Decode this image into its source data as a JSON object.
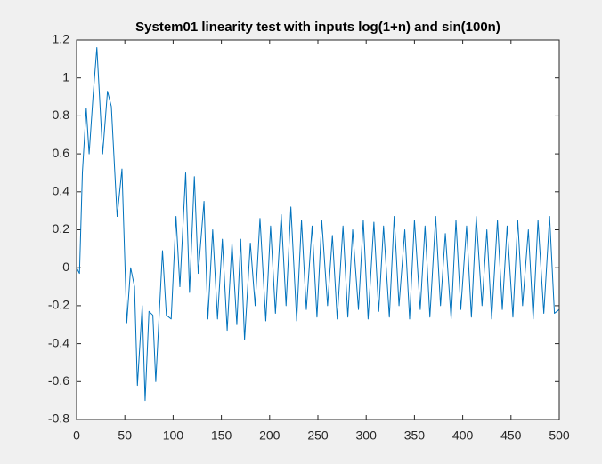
{
  "chart_data": {
    "type": "line",
    "title": "System01 linearity test with inputs log(1+n) and sin(100n)",
    "x": [
      0,
      3,
      6,
      10,
      13,
      17,
      21,
      27,
      32,
      36,
      42,
      47,
      52,
      56,
      60,
      63,
      68,
      71,
      75,
      79,
      82,
      89,
      93,
      98,
      103,
      107,
      113,
      117,
      122,
      126,
      132,
      136,
      141,
      146,
      151,
      156,
      161,
      166,
      170,
      174,
      180,
      185,
      190,
      196,
      201,
      206,
      212,
      217,
      222,
      228,
      233,
      238,
      244,
      249,
      254,
      260,
      265,
      270,
      276,
      281,
      286,
      292,
      297,
      302,
      308,
      313,
      318,
      324,
      329,
      334,
      340,
      345,
      350,
      356,
      361,
      366,
      372,
      377,
      382,
      388,
      393,
      398,
      404,
      409,
      414,
      420,
      425,
      430,
      436,
      441,
      446,
      452,
      457,
      462,
      468,
      473,
      478,
      484,
      490,
      495,
      500
    ],
    "series": [
      {
        "color": "#0072bd",
        "values": [
          0,
          -0.03,
          0.5,
          0.84,
          0.6,
          0.9,
          1.16,
          0.6,
          0.93,
          0.85,
          0.27,
          0.52,
          -0.29,
          0.0,
          -0.1,
          -0.62,
          -0.2,
          -0.7,
          -0.23,
          -0.25,
          -0.6,
          0.09,
          -0.25,
          -0.27,
          0.27,
          -0.1,
          0.5,
          -0.13,
          0.48,
          -0.03,
          0.35,
          -0.27,
          0.2,
          -0.27,
          0.15,
          -0.33,
          0.13,
          -0.3,
          0.15,
          -0.38,
          0.13,
          -0.2,
          0.26,
          -0.28,
          0.22,
          -0.24,
          0.28,
          -0.2,
          0.32,
          -0.28,
          0.25,
          -0.22,
          0.22,
          -0.26,
          0.25,
          -0.2,
          0.17,
          -0.27,
          0.22,
          -0.26,
          0.2,
          -0.22,
          0.25,
          -0.27,
          0.24,
          -0.23,
          0.22,
          -0.26,
          0.27,
          -0.2,
          0.2,
          -0.27,
          0.25,
          -0.22,
          0.22,
          -0.26,
          0.27,
          -0.2,
          0.18,
          -0.27,
          0.25,
          -0.22,
          0.22,
          -0.26,
          0.27,
          -0.2,
          0.2,
          -0.27,
          0.25,
          -0.22,
          0.22,
          -0.26,
          0.25,
          -0.2,
          0.2,
          -0.27,
          0.25,
          -0.24,
          0.27,
          -0.24,
          -0.22
        ]
      }
    ],
    "xlim": [
      0,
      500
    ],
    "xticks": [
      0,
      50,
      100,
      150,
      200,
      250,
      300,
      350,
      400,
      450,
      500
    ],
    "ylim": [
      -0.8,
      1.2
    ],
    "yticks": [
      -0.8,
      -0.6,
      -0.4,
      -0.2,
      0,
      0.2,
      0.4,
      0.6,
      0.8,
      1,
      1.2
    ]
  }
}
